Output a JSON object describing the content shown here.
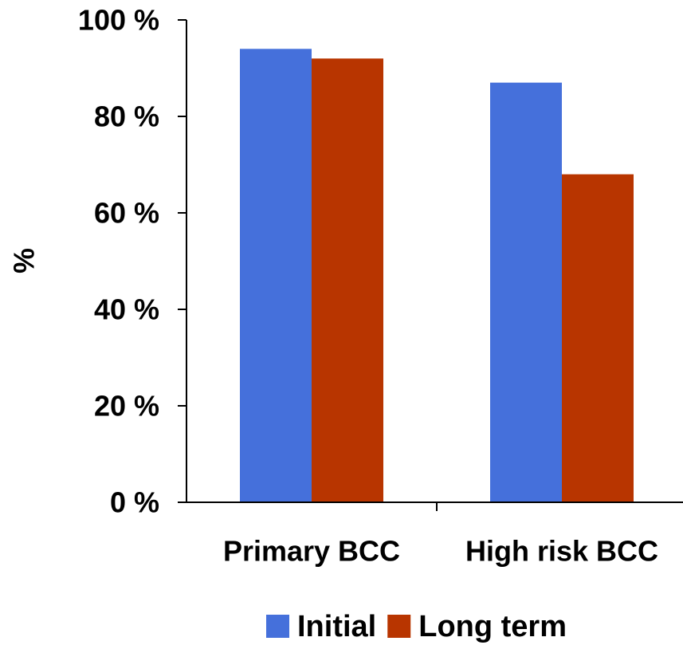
{
  "chart_data": {
    "type": "bar",
    "title": "",
    "xlabel": "",
    "ylabel": "%",
    "categories": [
      "Primary BCC",
      "High risk BCC"
    ],
    "series": [
      {
        "name": "Initial",
        "values": [
          94,
          87
        ],
        "color": "#4570DB"
      },
      {
        "name": "Long term",
        "values": [
          92,
          68
        ],
        "color": "#B83500"
      }
    ],
    "ylim": [
      0,
      100
    ],
    "yticks": [
      0,
      20,
      40,
      60,
      80,
      100
    ],
    "ytick_labels": [
      "0 %",
      "20 %",
      "40 %",
      "60 %",
      "80 %",
      "100 %"
    ],
    "grid": false,
    "legend": "bottom"
  }
}
